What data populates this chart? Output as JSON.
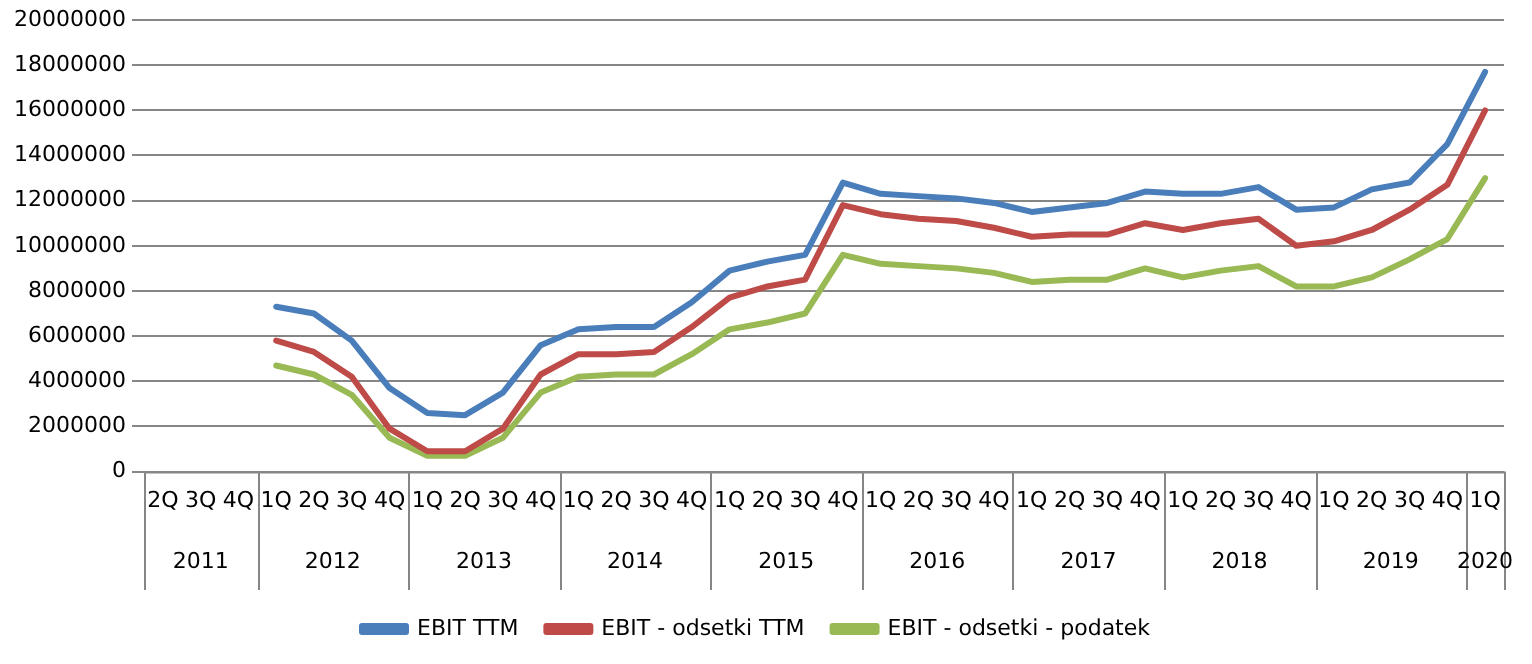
{
  "chart_data": {
    "type": "line",
    "categories": [
      "2Q",
      "3Q",
      "4Q",
      "1Q",
      "2Q",
      "3Q",
      "4Q",
      "1Q",
      "2Q",
      "3Q",
      "4Q",
      "1Q",
      "2Q",
      "3Q",
      "4Q",
      "1Q",
      "2Q",
      "3Q",
      "4Q",
      "1Q",
      "2Q",
      "3Q",
      "4Q",
      "1Q",
      "2Q",
      "3Q",
      "4Q",
      "1Q",
      "2Q",
      "3Q",
      "4Q",
      "1Q",
      "2Q",
      "3Q",
      "4Q",
      "1Q"
    ],
    "annotations": [
      "2011",
      "2012",
      "2013",
      "2014",
      "2015",
      "2016",
      "2017",
      "2018",
      "2019",
      "2020"
    ],
    "series": [
      {
        "name": "EBIT TTM",
        "color": "#4a7ebb",
        "values": [
          null,
          null,
          null,
          7300000,
          7000000,
          5800000,
          3700000,
          2600000,
          2500000,
          3500000,
          5600000,
          6300000,
          6400000,
          6400000,
          7500000,
          8900000,
          9300000,
          9600000,
          12800000,
          12300000,
          12200000,
          12100000,
          11900000,
          11500000,
          11700000,
          11900000,
          12400000,
          12300000,
          12300000,
          12600000,
          11600000,
          11700000,
          12500000,
          12800000,
          14500000,
          17700000
        ]
      },
      {
        "name": "EBIT - odsetki TTM",
        "color": "#be4b48",
        "values": [
          null,
          null,
          null,
          5800000,
          5300000,
          4200000,
          1900000,
          900000,
          900000,
          1900000,
          4300000,
          5200000,
          5200000,
          5300000,
          6400000,
          7700000,
          8200000,
          8500000,
          11800000,
          11400000,
          11200000,
          11100000,
          10800000,
          10400000,
          10500000,
          10500000,
          11000000,
          10700000,
          11000000,
          11200000,
          10000000,
          10200000,
          10700000,
          11600000,
          12700000,
          16000000
        ]
      },
      {
        "name": "EBIT - odsetki - podatek",
        "color": "#98b954",
        "values": [
          null,
          null,
          null,
          4700000,
          4300000,
          3400000,
          1500000,
          700000,
          700000,
          1500000,
          3500000,
          4200000,
          4300000,
          4300000,
          5200000,
          6300000,
          6600000,
          7000000,
          9600000,
          9200000,
          9100000,
          9000000,
          8800000,
          8400000,
          8500000,
          8500000,
          9000000,
          8600000,
          8900000,
          9100000,
          8200000,
          8200000,
          8600000,
          9400000,
          10300000,
          13000000
        ]
      }
    ],
    "ylim": [
      0,
      20000000
    ],
    "yticks": [
      0,
      2000000,
      4000000,
      6000000,
      8000000,
      10000000,
      12000000,
      14000000,
      16000000,
      18000000,
      20000000
    ],
    "grid": "y",
    "legend": "bottom",
    "marker": "none",
    "line_style": "solid"
  }
}
